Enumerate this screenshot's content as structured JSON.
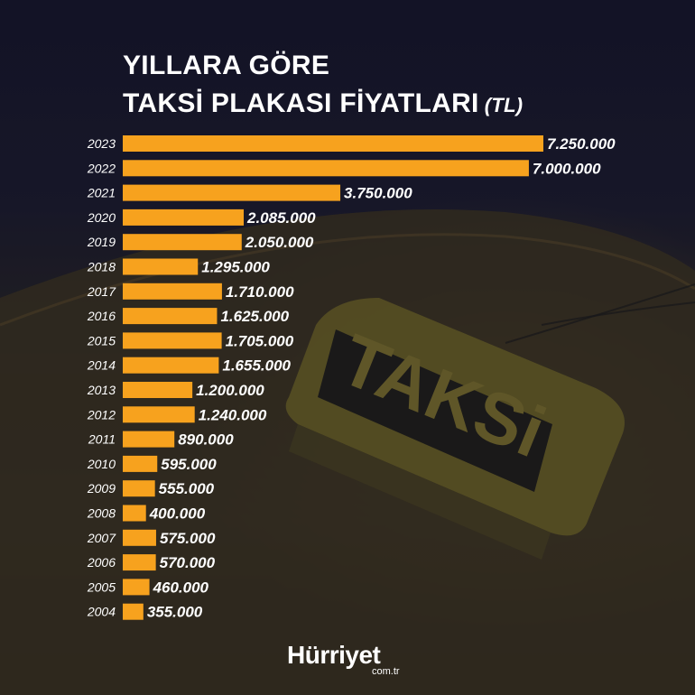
{
  "header": {
    "title_line1": "YILLARA GÖRE",
    "title_line2": "TAKSİ PLAKASI FİYATLARI",
    "title_unit": "(TL)"
  },
  "footer": {
    "logo": "Hürriyet",
    "logo_sub": "com.tr"
  },
  "background": {
    "sign_text": "TAKSi"
  },
  "colors": {
    "bar": "#f7a21e",
    "text": "#ffffff",
    "background": "#17172a"
  },
  "chart_data": {
    "type": "bar",
    "orientation": "horizontal",
    "title": "YILLARA GÖRE TAKSİ PLAKASI FİYATLARI (TL)",
    "categories": [
      "2023",
      "2022",
      "2021",
      "2020",
      "2019",
      "2018",
      "2017",
      "2016",
      "2015",
      "2014",
      "2013",
      "2012",
      "2011",
      "2010",
      "2009",
      "2008",
      "2007",
      "2006",
      "2005",
      "2004"
    ],
    "values": [
      7250000,
      7000000,
      3750000,
      2085000,
      2050000,
      1295000,
      1710000,
      1625000,
      1705000,
      1655000,
      1200000,
      1240000,
      890000,
      595000,
      555000,
      400000,
      575000,
      570000,
      460000,
      355000
    ],
    "value_labels": [
      "7.250.000",
      "7.000.000",
      "3.750.000",
      "2.085.000",
      "2.050.000",
      "1.295.000",
      "1.710.000",
      "1.625.000",
      "1.705.000",
      "1.655.000",
      "1.200.000",
      "1.240.000",
      "890.000",
      "595.000",
      "555.000",
      "400.000",
      "575.000",
      "570.000",
      "460.000",
      "355.000"
    ],
    "grid": false,
    "legend": "none"
  }
}
